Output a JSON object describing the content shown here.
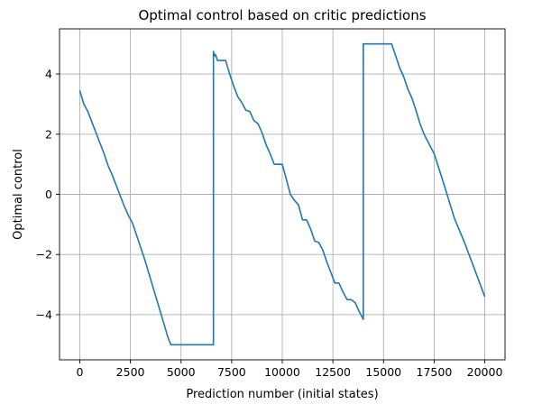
{
  "chart_data": {
    "type": "line",
    "title": "Optimal control based on critic predictions",
    "xlabel": "Prediction number (initial states)",
    "ylabel": "Optimal control",
    "xlim": [
      -1000,
      21000
    ],
    "ylim": [
      -5.5,
      5.5
    ],
    "xticks": [
      0,
      2500,
      5000,
      7500,
      10000,
      12500,
      15000,
      17500,
      20000
    ],
    "xtick_labels": [
      "0",
      "2500",
      "5000",
      "7500",
      "10000",
      "12500",
      "15000",
      "17500",
      "20000"
    ],
    "yticks": [
      -4,
      -2,
      0,
      2,
      4
    ],
    "ytick_labels": [
      "−4",
      "−2",
      "0",
      "2",
      "4"
    ],
    "grid": true,
    "line_color": "#1f77b4",
    "series": [
      {
        "name": "",
        "x": [
          0,
          200,
          400,
          600,
          800,
          1000,
          1200,
          1400,
          1600,
          1800,
          2000,
          2200,
          2400,
          2600,
          2800,
          3000,
          3200,
          3400,
          3600,
          3800,
          4000,
          4200,
          4350,
          4500,
          5000,
          5500,
          6000,
          6500,
          6600,
          6600,
          6650,
          6700,
          6800,
          6900,
          7000,
          7200,
          7400,
          7600,
          7800,
          8000,
          8200,
          8400,
          8600,
          8800,
          9000,
          9200,
          9400,
          9600,
          9800,
          10000,
          10200,
          10400,
          10600,
          10800,
          11000,
          11200,
          11400,
          11600,
          11800,
          12000,
          12200,
          12400,
          12600,
          12800,
          13000,
          13200,
          13400,
          13600,
          13800,
          14000,
          14000,
          14500,
          15000,
          15400,
          15600,
          15800,
          16000,
          16200,
          16400,
          16600,
          16800,
          17000,
          17500,
          18000,
          18500,
          19000,
          19500,
          20000
        ],
        "y": [
          3.45,
          3.0,
          2.75,
          2.4,
          2.05,
          1.7,
          1.35,
          0.95,
          0.65,
          0.3,
          -0.05,
          -0.4,
          -0.7,
          -0.95,
          -1.35,
          -1.75,
          -2.15,
          -2.6,
          -3.05,
          -3.5,
          -3.95,
          -4.4,
          -4.75,
          -5.0,
          -5.0,
          -5.0,
          -5.0,
          -5.0,
          -5.0,
          4.75,
          4.6,
          4.65,
          4.45,
          4.45,
          4.45,
          4.45,
          4.0,
          3.6,
          3.25,
          3.05,
          2.8,
          2.75,
          2.45,
          2.35,
          2.05,
          1.65,
          1.35,
          1.0,
          1.0,
          1.0,
          0.5,
          0.0,
          -0.2,
          -0.35,
          -0.85,
          -0.85,
          -1.15,
          -1.55,
          -1.6,
          -1.85,
          -2.25,
          -2.6,
          -2.95,
          -2.95,
          -3.25,
          -3.5,
          -3.5,
          -3.6,
          -3.9,
          -4.15,
          5.0,
          5.0,
          5.0,
          5.0,
          4.6,
          4.2,
          3.9,
          3.5,
          3.2,
          2.8,
          2.35,
          2.0,
          1.35,
          0.3,
          -0.8,
          -1.6,
          -2.5,
          -3.4
        ]
      }
    ]
  }
}
